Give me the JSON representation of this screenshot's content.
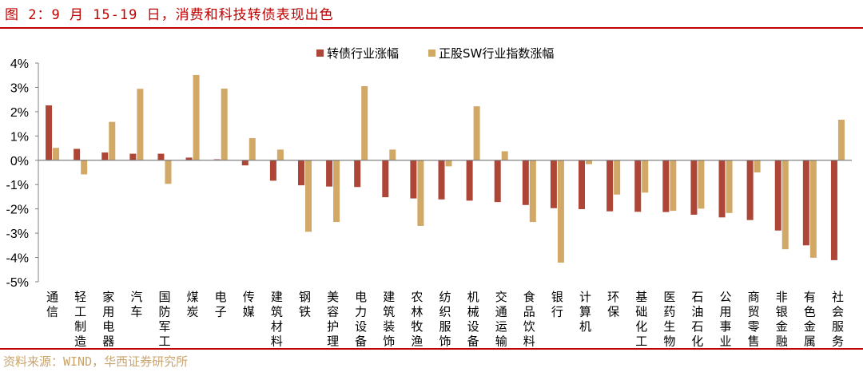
{
  "title": "图 2：9 月 15-19 日，消费和科技转债表现出色",
  "source": "资料来源：WIND，华西证券研究所",
  "chart_data": {
    "type": "bar",
    "title": "图 2：9 月 15-19 日，消费和科技转债表现出色",
    "xlabel": "",
    "ylabel": "",
    "ylim": [
      -5,
      4
    ],
    "yticks": [
      "4%",
      "3%",
      "2%",
      "1%",
      "0%",
      "-1%",
      "-2%",
      "-3%",
      "-4%",
      "-5%"
    ],
    "grid": false,
    "legend_position": "top",
    "categories": [
      "通信",
      "轻工制造",
      "家用电器",
      "汽车",
      "国防军工",
      "煤炭",
      "电子",
      "传媒",
      "建筑材料",
      "钢铁",
      "美容护理",
      "电力设备",
      "建筑装饰",
      "农林牧渔",
      "纺织服饰",
      "机械设备",
      "交通运输",
      "食品饮料",
      "银行",
      "计算机",
      "环保",
      "基础化工",
      "医药生物",
      "石油石化",
      "公用事业",
      "商贸零售",
      "非银金融",
      "有色金属",
      "社会服务"
    ],
    "series": [
      {
        "name": "转债行业涨幅",
        "color": "#ae4637",
        "values": [
          2.26,
          0.47,
          0.32,
          0.27,
          0.27,
          0.11,
          0.04,
          -0.21,
          -0.84,
          -1.03,
          -1.08,
          -1.1,
          -1.52,
          -1.57,
          -1.61,
          -1.66,
          -1.72,
          -1.84,
          -1.97,
          -2.01,
          -2.1,
          -2.12,
          -2.13,
          -2.24,
          -2.35,
          -2.46,
          -2.89,
          -3.5,
          -4.11
        ]
      },
      {
        "name": "正股SW行业指数涨幅",
        "color": "#d1a865",
        "values": [
          0.51,
          -0.58,
          1.58,
          2.94,
          -0.97,
          3.51,
          2.95,
          0.91,
          0.44,
          -2.94,
          -2.54,
          3.05,
          0.44,
          -2.7,
          -0.25,
          2.22,
          0.37,
          -2.54,
          -4.21,
          -0.16,
          -1.41,
          -1.33,
          -2.08,
          -1.99,
          -2.17,
          -0.5,
          -3.66,
          -4.01,
          1.67
        ]
      }
    ]
  }
}
